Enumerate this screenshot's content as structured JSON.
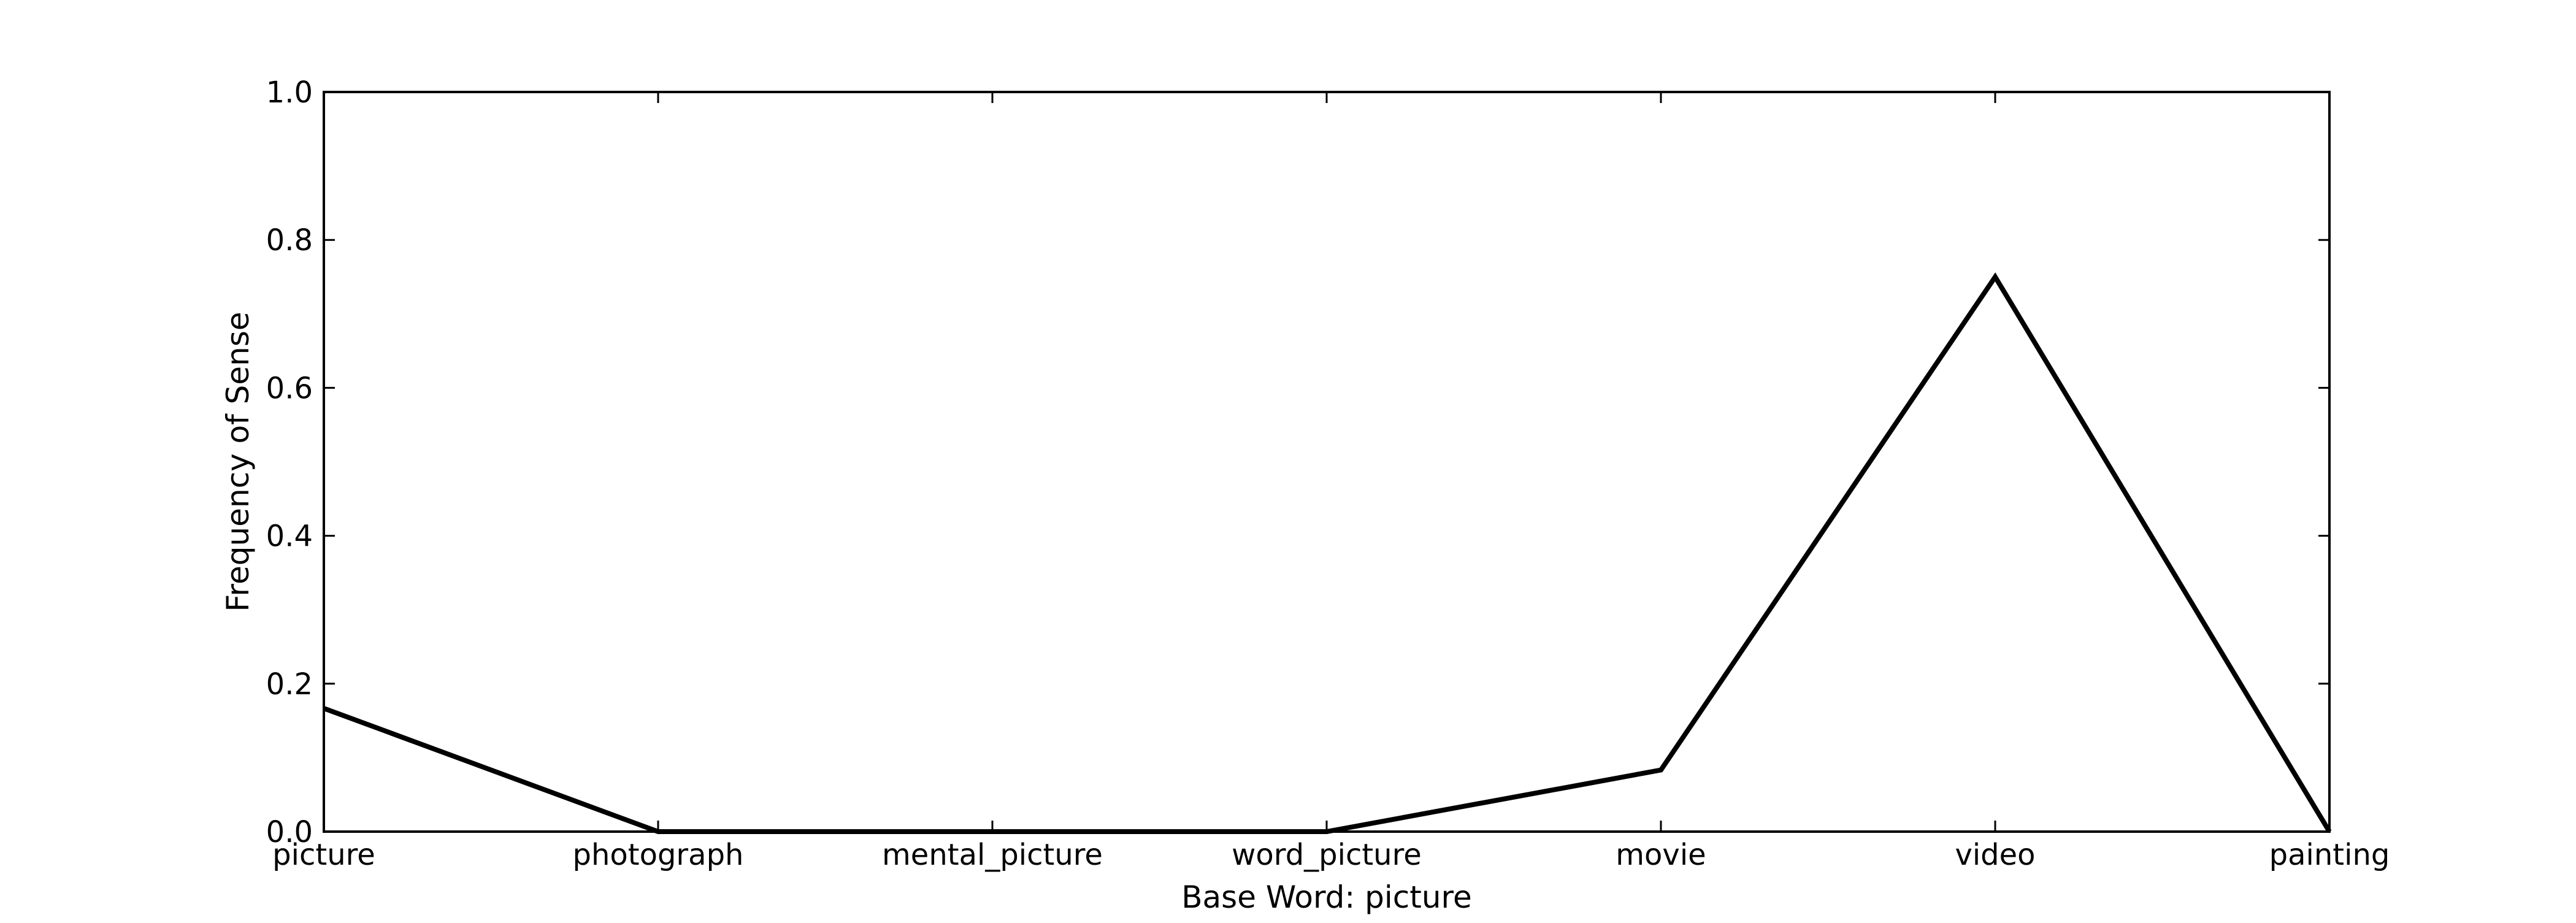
{
  "chart_data": {
    "type": "line",
    "title": "",
    "xlabel": "Base Word: picture",
    "ylabel": "Frequency of Sense",
    "categories": [
      "picture",
      "photograph",
      "mental_picture",
      "word_picture",
      "movie",
      "video",
      "painting"
    ],
    "series": [
      {
        "values": [
          0.1667,
          0.0,
          0.0,
          0.0,
          0.0833,
          0.75,
          0.0
        ]
      }
    ],
    "ylim": [
      0.0,
      1.0
    ],
    "yticks": [
      "0.0",
      "0.2",
      "0.4",
      "0.6",
      "0.8",
      "1.0"
    ],
    "grid": false,
    "legend": "none",
    "line_color": "#000000"
  }
}
